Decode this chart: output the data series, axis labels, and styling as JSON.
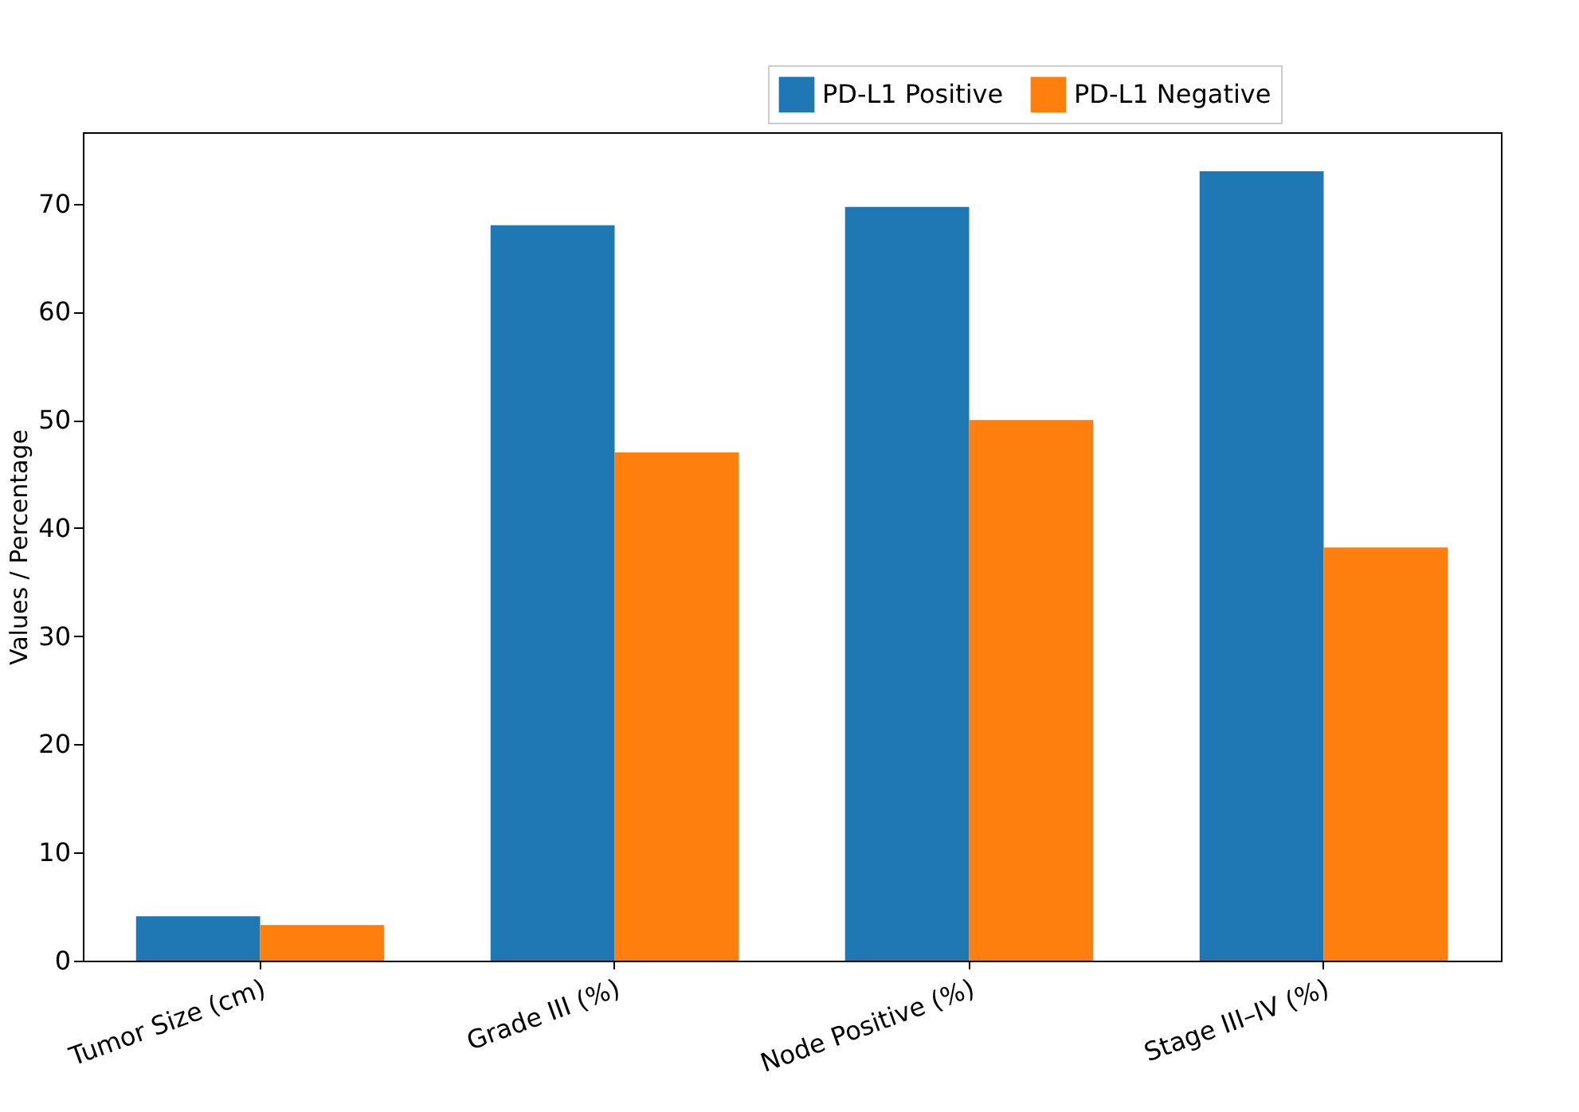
{
  "chart_data": {
    "type": "bar",
    "ylabel": "Values / Percentage",
    "categories": [
      "Tumor Size (cm)",
      "Grade III (%)",
      "Node Positive (%)",
      "Stage III–IV (%)"
    ],
    "series": [
      {
        "name": "PD-L1 Positive",
        "color": "#1f77b4",
        "values": [
          4.1,
          68.0,
          69.7,
          73.0
        ]
      },
      {
        "name": "PD-L1 Negative",
        "color": "#ff7f0e",
        "values": [
          3.3,
          47.0,
          50.0,
          38.2
        ]
      }
    ],
    "ylim": [
      0,
      76.6
    ],
    "yticks": [
      0,
      10,
      20,
      30,
      40,
      50,
      60,
      70
    ],
    "grid": false,
    "legend": "top right"
  }
}
